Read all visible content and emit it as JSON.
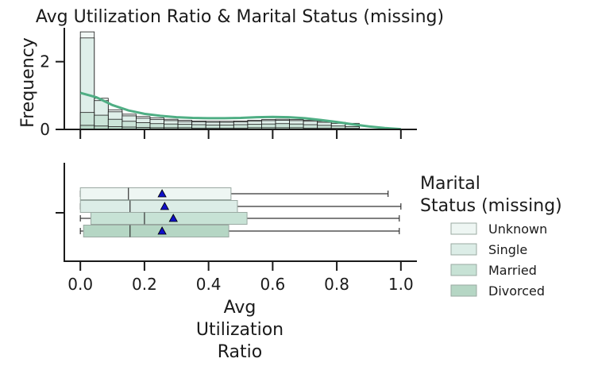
{
  "chart_data": {
    "type": "histogram+boxplot",
    "title": "Avg Utilization Ratio & Marital Status (missing)",
    "xlabel_lines": [
      "Avg",
      "Utilization",
      "Ratio"
    ],
    "hist_ylabel": "Frequency",
    "hist_yticks": [
      "0",
      "2"
    ],
    "hist_ylim": [
      0,
      3
    ],
    "xlim": [
      -0.05,
      1.05
    ],
    "xticks": [
      "0.0",
      "0.2",
      "0.4",
      "0.6",
      "0.8",
      "1.0"
    ],
    "xtick_values": [
      0.0,
      0.2,
      0.4,
      0.6,
      0.8,
      1.0
    ],
    "colors": {
      "Unknown": "#eef6f3",
      "Single": "#dcede7",
      "Married": "#c7e2d5",
      "Divorced": "#b5d6c4",
      "kde": "#4fae84",
      "mean_marker": "#1010c8"
    },
    "histogram": {
      "bin_edges": [
        0.0,
        0.0435,
        0.087,
        0.1305,
        0.174,
        0.2175,
        0.261,
        0.3045,
        0.348,
        0.3915,
        0.435,
        0.4785,
        0.522,
        0.5655,
        0.609,
        0.6525,
        0.696,
        0.7395,
        0.783,
        0.8265,
        0.87
      ],
      "series": [
        {
          "name": "Unknown",
          "values": [
            2.88,
            0.92,
            0.58,
            0.45,
            0.38,
            0.34,
            0.3,
            0.27,
            0.25,
            0.24,
            0.24,
            0.25,
            0.27,
            0.29,
            0.3,
            0.29,
            0.27,
            0.24,
            0.21,
            0.18
          ]
        },
        {
          "name": "Single",
          "values": [
            2.7,
            0.85,
            0.52,
            0.4,
            0.33,
            0.29,
            0.26,
            0.23,
            0.22,
            0.21,
            0.21,
            0.22,
            0.24,
            0.26,
            0.27,
            0.26,
            0.24,
            0.21,
            0.18,
            0.15
          ]
        },
        {
          "name": "Married",
          "values": [
            0.5,
            0.42,
            0.3,
            0.24,
            0.2,
            0.17,
            0.16,
            0.15,
            0.14,
            0.13,
            0.13,
            0.14,
            0.15,
            0.16,
            0.17,
            0.16,
            0.14,
            0.12,
            0.1,
            0.08
          ]
        },
        {
          "name": "Divorced",
          "values": [
            0.12,
            0.1,
            0.08,
            0.07,
            0.06,
            0.05,
            0.05,
            0.05,
            0.04,
            0.04,
            0.04,
            0.04,
            0.05,
            0.05,
            0.05,
            0.05,
            0.04,
            0.04,
            0.03,
            0.03
          ]
        }
      ],
      "kde": {
        "x": [
          0.0,
          0.05,
          0.1,
          0.15,
          0.2,
          0.25,
          0.3,
          0.35,
          0.4,
          0.45,
          0.5,
          0.55,
          0.6,
          0.65,
          0.7,
          0.75,
          0.8,
          0.85,
          0.9,
          0.95,
          1.0
        ],
        "y": [
          1.08,
          0.95,
          0.72,
          0.56,
          0.46,
          0.4,
          0.36,
          0.34,
          0.33,
          0.33,
          0.34,
          0.36,
          0.37,
          0.36,
          0.33,
          0.28,
          0.22,
          0.15,
          0.09,
          0.04,
          0.01
        ]
      }
    },
    "boxplot": {
      "series": [
        {
          "name": "Unknown",
          "min": 0.0,
          "q1": 0.0,
          "median": 0.15,
          "q3": 0.47,
          "max": 0.96,
          "mean": 0.255
        },
        {
          "name": "Single",
          "min": 0.0,
          "q1": 0.0,
          "median": 0.155,
          "q3": 0.49,
          "max": 1.0,
          "mean": 0.263
        },
        {
          "name": "Married",
          "min": 0.0,
          "q1": 0.033,
          "median": 0.2,
          "q3": 0.52,
          "max": 0.995,
          "mean": 0.29
        },
        {
          "name": "Divorced",
          "min": 0.0,
          "q1": 0.01,
          "median": 0.155,
          "q3": 0.463,
          "max": 0.995,
          "mean": 0.255
        }
      ]
    },
    "legend": {
      "title_lines": [
        "Marital",
        "Status (missing)"
      ],
      "entries": [
        "Unknown",
        "Single",
        "Married",
        "Divorced"
      ],
      "placement": "right"
    }
  }
}
